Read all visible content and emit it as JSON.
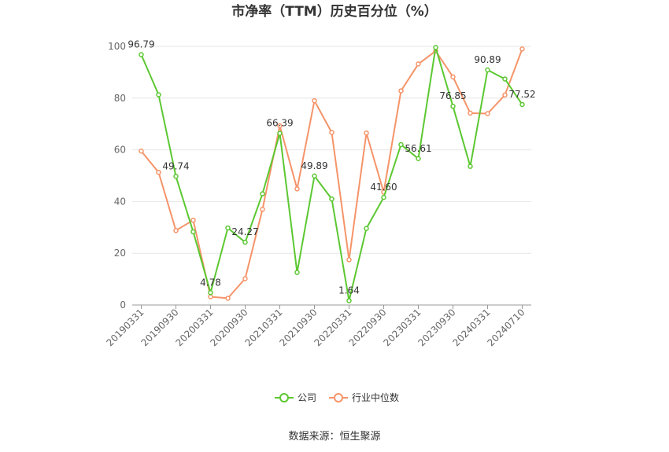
{
  "chart_data": {
    "type": "line",
    "title": "市净率（TTM）历史百分位（%）",
    "ylim": [
      0,
      100
    ],
    "yticks": [
      0,
      20,
      40,
      60,
      80,
      100
    ],
    "grid": "horizontal",
    "legend_position": "bottom",
    "x": [
      "20190331",
      "20190630",
      "20190930",
      "20191231",
      "20200331",
      "20200630",
      "20200930",
      "20201231",
      "20210331",
      "20210630",
      "20210930",
      "20211231",
      "20220331",
      "20220630",
      "20220930",
      "20221231",
      "20230331",
      "20230630",
      "20230930",
      "20231231",
      "20240331",
      "20240630",
      "20240710"
    ],
    "xtick_labels": [
      "20190331",
      "20190930",
      "20200331",
      "20200930",
      "20210331",
      "20210930",
      "20220331",
      "20220930",
      "20230331",
      "20230930",
      "20240331",
      "20240710"
    ],
    "xtick_indices": [
      0,
      2,
      4,
      6,
      8,
      10,
      12,
      14,
      16,
      18,
      20,
      22
    ],
    "series": [
      {
        "name": "公司",
        "color": "#5cc832",
        "values": [
          96.79,
          81.3,
          49.74,
          28.3,
          4.78,
          29.8,
          24.27,
          43.0,
          66.39,
          12.6,
          49.89,
          41.0,
          1.64,
          29.6,
          41.6,
          62.0,
          56.61,
          99.6,
          76.85,
          53.6,
          90.89,
          87.4,
          77.52
        ],
        "labels": {
          "0": "96.79",
          "2": "49.74",
          "4": "4.78",
          "6": "24.27",
          "8": "66.39",
          "10": "49.89",
          "12": "1.64",
          "14": "41.60",
          "16": "56.61",
          "18": "76.85",
          "20": "90.89",
          "22": "77.52"
        }
      },
      {
        "name": "行业中位数",
        "color": "#f5946a",
        "values": [
          59.5,
          51.3,
          28.8,
          32.8,
          3.2,
          2.6,
          10.2,
          37.0,
          69.3,
          44.9,
          79.0,
          66.7,
          17.5,
          66.5,
          43.6,
          82.8,
          93.2,
          98.2,
          88.2,
          74.2,
          74.0,
          81.2,
          99.0
        ]
      }
    ],
    "source": "数据来源：恒生聚源"
  }
}
